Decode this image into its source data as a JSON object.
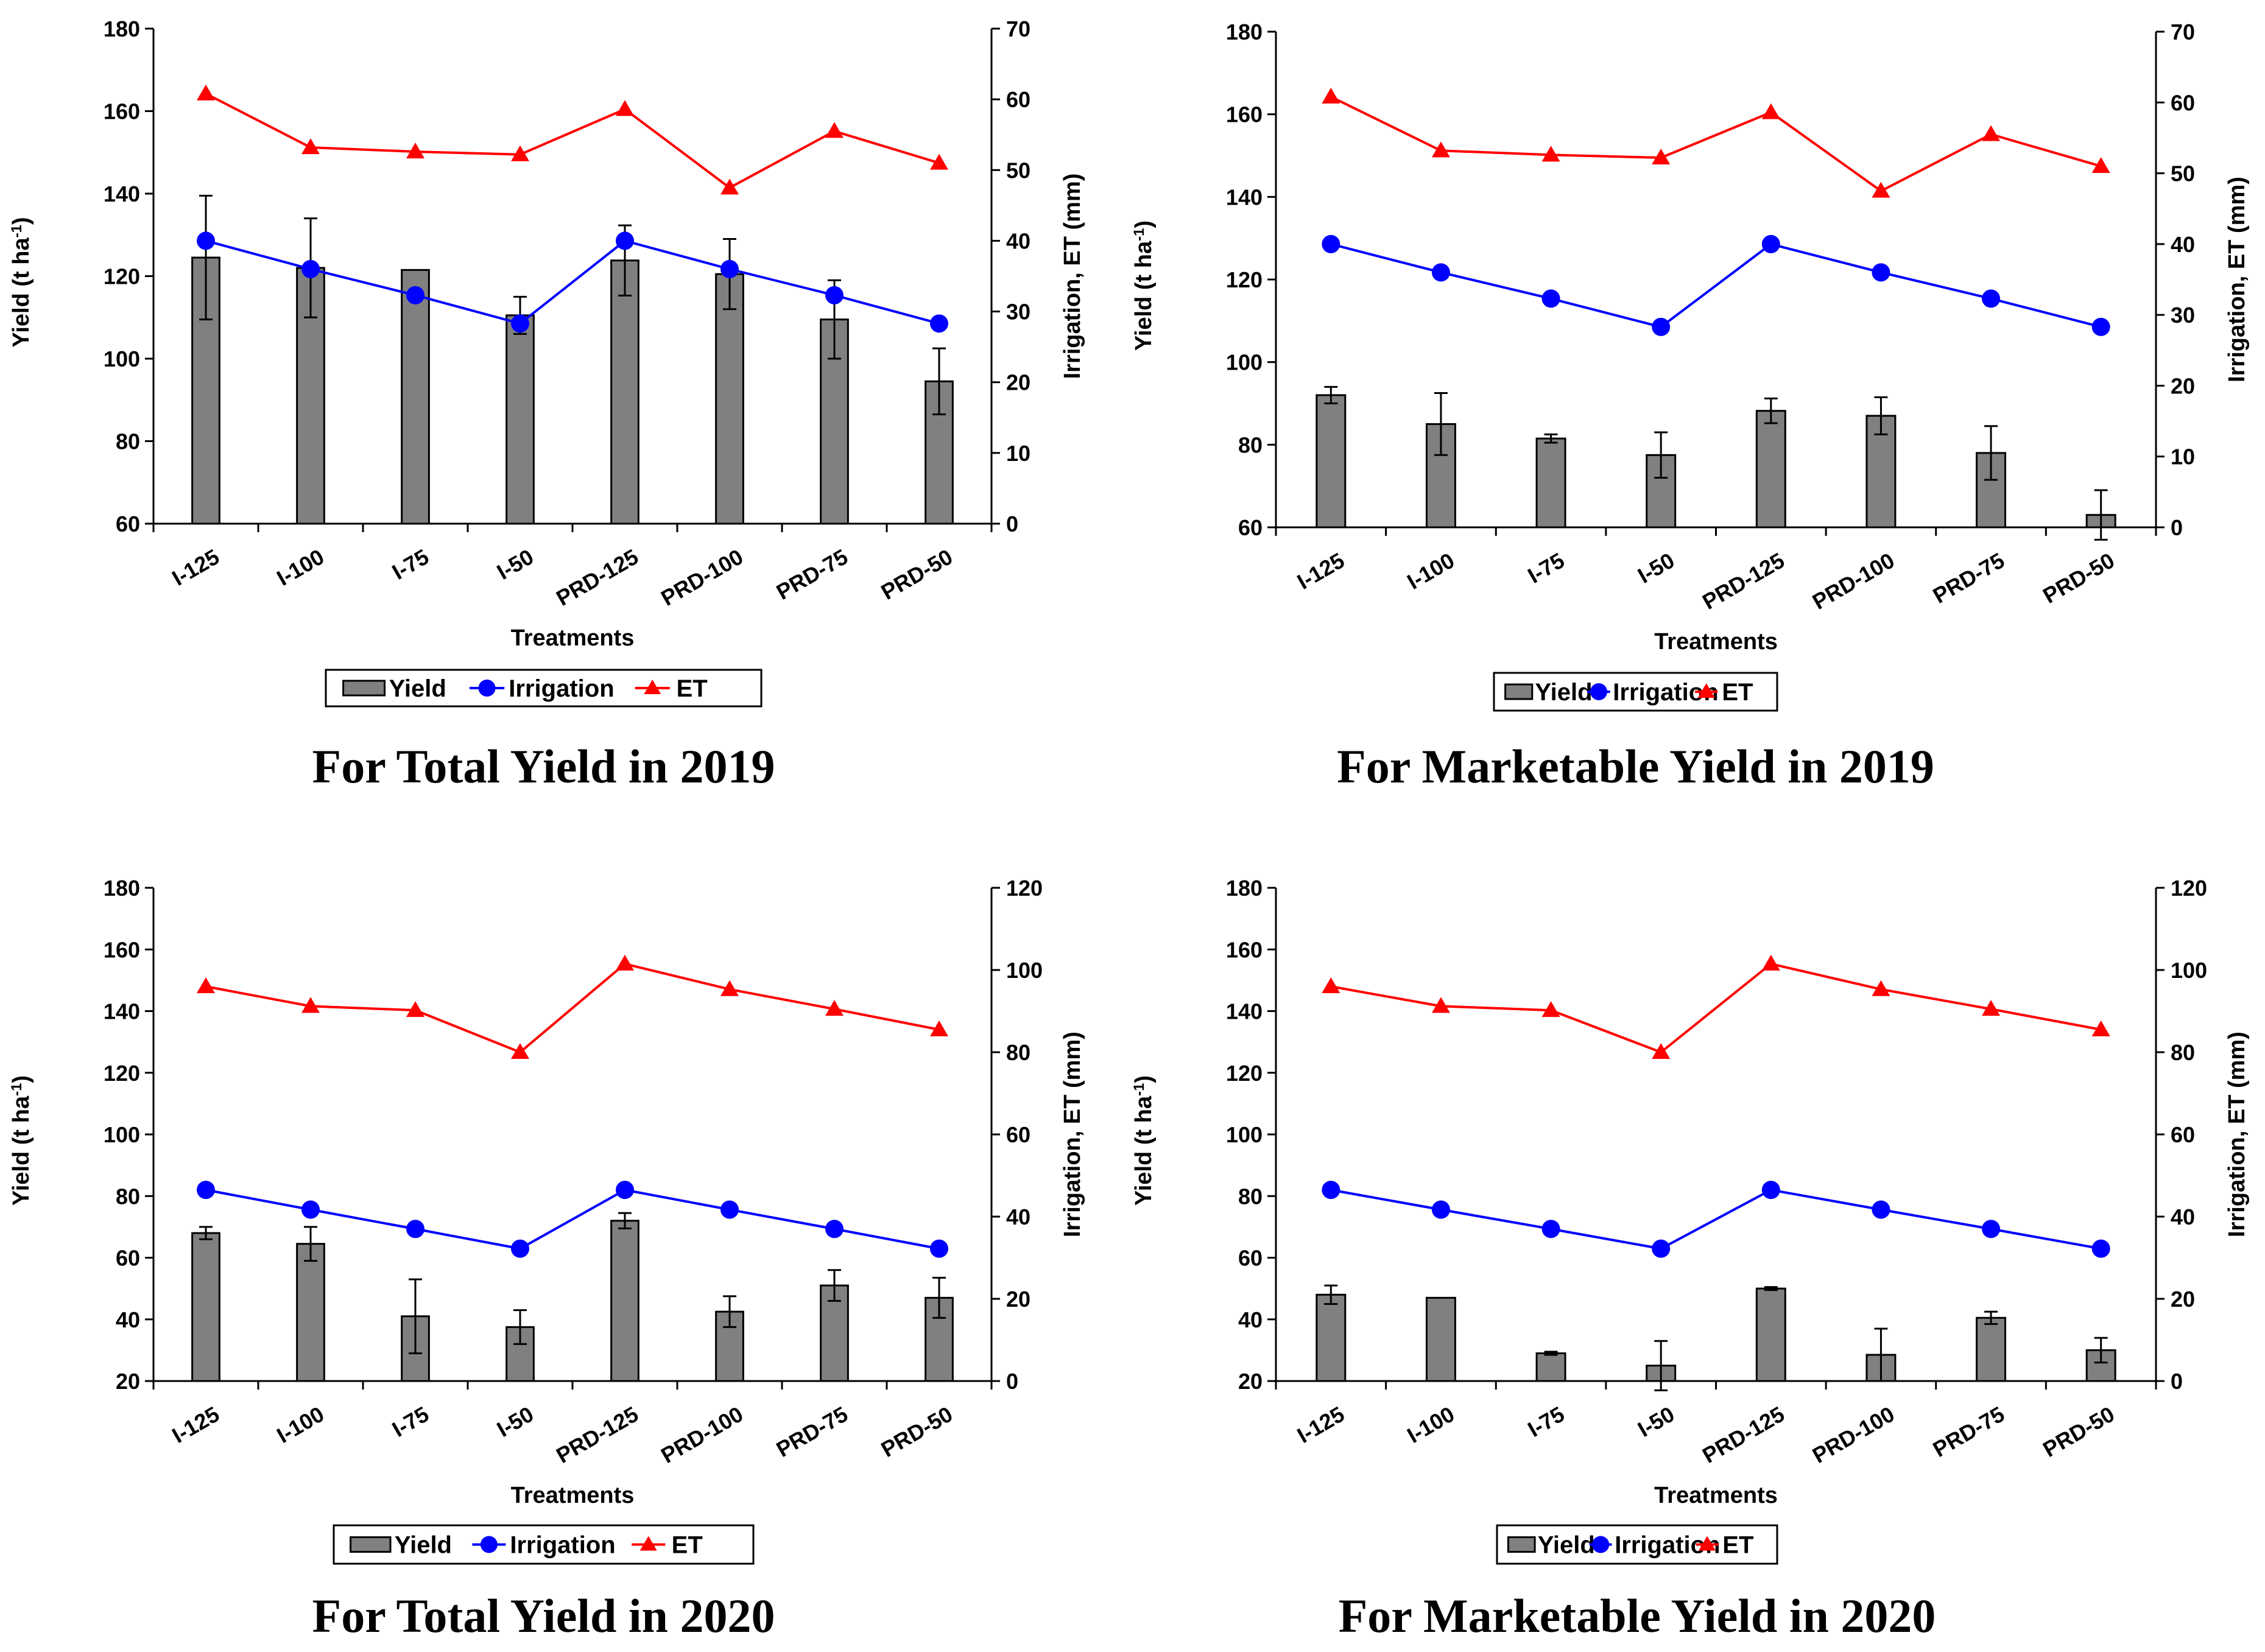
{
  "colors": {
    "bar": "#808080",
    "bar_edge": "#000000",
    "irrigation": "#0000ff",
    "et": "#ff0000"
  },
  "icons": {
    "bar_swatch": "bar-swatch-icon",
    "circle_marker": "circle-marker-icon",
    "triangle_marker": "triangle-marker-icon"
  },
  "chart_data": [
    {
      "type": "bar",
      "title": "For Total Yield in 2019",
      "xlabel": "Treatments",
      "ylabel": "Yield (t ha",
      "ylabel_sup": "-1",
      "ylabel_end": ")",
      "y2label": "Irrigation, ET (mm)",
      "categories": [
        "I-125",
        "I-100",
        "I-75",
        "I-50",
        "PRD-125",
        "PRD-100",
        "PRD-75",
        "PRD-50"
      ],
      "ylim": [
        60,
        180
      ],
      "yticks": [
        60,
        80,
        100,
        120,
        140,
        160,
        180
      ],
      "y2lim": [
        0,
        70
      ],
      "y2ticks": [
        0,
        10,
        20,
        30,
        40,
        50,
        60,
        70
      ],
      "legend": [
        "Yield",
        "Irrigation",
        "ET"
      ],
      "series": [
        {
          "name": "Yield",
          "axis": "left",
          "kind": "bar",
          "values": [
            124.5,
            122,
            121.5,
            110.5,
            123.8,
            120.5,
            109.5,
            94.5
          ],
          "errors": [
            15,
            12,
            0,
            4.5,
            8.5,
            8.5,
            9.5,
            8
          ]
        },
        {
          "name": "Irrigation",
          "axis": "right",
          "kind": "line",
          "values": [
            40,
            36,
            32.3,
            28.3,
            40,
            36,
            32.3,
            28.3
          ]
        },
        {
          "name": "ET",
          "axis": "right",
          "kind": "line",
          "values": [
            60.8,
            53.2,
            52.6,
            52.2,
            58.6,
            47.5,
            55.5,
            51
          ]
        }
      ]
    },
    {
      "type": "bar",
      "title": "For Marketable Yield in 2019",
      "xlabel": "Treatments",
      "ylabel": "Yield (t ha",
      "ylabel_sup": "-1",
      "ylabel_end": ")",
      "y2label": "Irrigation, ET (mm)",
      "categories": [
        "I-125",
        "I-100",
        "I-75",
        "I-50",
        "PRD-125",
        "PRD-100",
        "PRD-75",
        "PRD-50"
      ],
      "ylim": [
        60,
        180
      ],
      "yticks": [
        60,
        80,
        100,
        120,
        140,
        160,
        180
      ],
      "y2lim": [
        0,
        70
      ],
      "y2ticks": [
        0,
        10,
        20,
        30,
        40,
        50,
        60,
        70
      ],
      "legend": [
        "Yield",
        "Irrigation",
        "ET"
      ],
      "series": [
        {
          "name": "Yield",
          "axis": "left",
          "kind": "bar",
          "values": [
            92,
            85,
            81.5,
            77.5,
            88.2,
            87,
            78,
            63
          ],
          "errors": [
            2,
            7.5,
            1,
            5.5,
            3,
            4.5,
            6.5,
            6
          ]
        },
        {
          "name": "Irrigation",
          "axis": "right",
          "kind": "line",
          "values": [
            40,
            36,
            32.3,
            28.3,
            40,
            36,
            32.3,
            28.3
          ]
        },
        {
          "name": "ET",
          "axis": "right",
          "kind": "line",
          "values": [
            60.8,
            53.2,
            52.6,
            52.2,
            58.6,
            47.5,
            55.5,
            51
          ]
        }
      ]
    },
    {
      "type": "bar",
      "title": "For Total Yield in 2020",
      "xlabel": "Treatments",
      "ylabel": "Yield (t ha",
      "ylabel_sup": "-1",
      "ylabel_end": ")",
      "y2label": "Irrigation, ET (mm)",
      "categories": [
        "I-125",
        "I-100",
        "I-75",
        "I-50",
        "PRD-125",
        "PRD-100",
        "PRD-75",
        "PRD-50"
      ],
      "ylim": [
        20,
        180
      ],
      "yticks": [
        20,
        40,
        60,
        80,
        100,
        120,
        140,
        160,
        180
      ],
      "y2lim": [
        0,
        120
      ],
      "y2ticks": [
        0,
        20,
        40,
        60,
        80,
        100,
        120
      ],
      "legend": [
        "Yield",
        "Irrigation",
        "ET"
      ],
      "series": [
        {
          "name": "Yield",
          "axis": "left",
          "kind": "bar",
          "values": [
            68,
            64.5,
            41,
            37.5,
            72,
            42.5,
            51,
            47
          ],
          "errors": [
            2,
            5.5,
            12,
            5.5,
            2.5,
            5,
            5,
            6.5
          ]
        },
        {
          "name": "Irrigation",
          "axis": "right",
          "kind": "line",
          "values": [
            46.5,
            41.7,
            37,
            32.2,
            46.5,
            41.7,
            37,
            32.2
          ]
        },
        {
          "name": "ET",
          "axis": "right",
          "kind": "line",
          "values": [
            96,
            91.2,
            90.2,
            80,
            101.5,
            95.3,
            90.5,
            85.5
          ]
        }
      ]
    },
    {
      "type": "bar",
      "title": "For Marketable Yield in 2020",
      "xlabel": "Treatments",
      "ylabel": "Yield (t ha",
      "ylabel_sup": "-1",
      "ylabel_end": ")",
      "y2label": "Irrigation, ET (mm)",
      "categories": [
        "I-125",
        "I-100",
        "I-75",
        "I-50",
        "PRD-125",
        "PRD-100",
        "PRD-75",
        "PRD-50"
      ],
      "ylim": [
        20,
        180
      ],
      "yticks": [
        20,
        40,
        60,
        80,
        100,
        120,
        140,
        160,
        180
      ],
      "y2lim": [
        0,
        120
      ],
      "y2ticks": [
        0,
        20,
        40,
        60,
        80,
        100,
        120
      ],
      "legend": [
        "Yield",
        "Irrigation",
        "ET"
      ],
      "series": [
        {
          "name": "Yield",
          "axis": "left",
          "kind": "bar",
          "values": [
            48,
            47,
            29,
            25,
            50,
            28.5,
            40.5,
            30
          ],
          "errors": [
            3,
            0,
            0.5,
            8,
            0.5,
            8.5,
            2,
            4
          ]
        },
        {
          "name": "Irrigation",
          "axis": "right",
          "kind": "line",
          "values": [
            46.5,
            41.7,
            37,
            32.2,
            46.5,
            41.7,
            37,
            32.2
          ]
        },
        {
          "name": "ET",
          "axis": "right",
          "kind": "line",
          "values": [
            96,
            91.2,
            90.2,
            80,
            101.5,
            95.3,
            90.5,
            85.5
          ]
        }
      ]
    }
  ]
}
